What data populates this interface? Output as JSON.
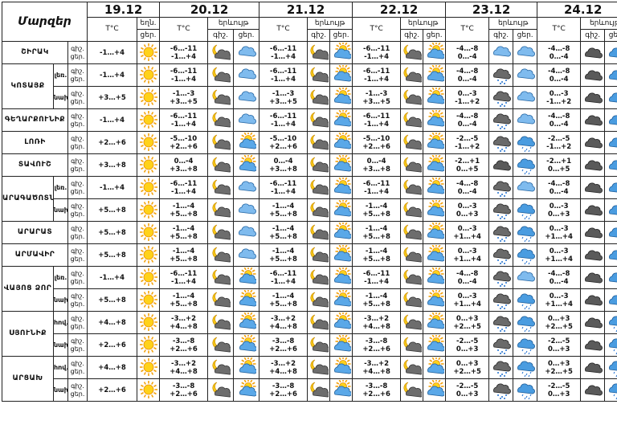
{
  "header": {
    "corner": "Մարզեր",
    "dates": [
      "19.12",
      "20.12",
      "21.12",
      "22.12",
      "23.12",
      "24.12"
    ],
    "temp_label": "T°C",
    "wx_label_19": "եղն.",
    "wx_sub_19": "ցեր.",
    "wx_label": "երևույթ",
    "night_label": "գիշ.",
    "day_label": "ցեր."
  },
  "daynight": [
    "գիշ.",
    "ցեր."
  ],
  "icon_legend": {
    "sun": "sun-icon",
    "cloud-sun": "cloud-sun-icon",
    "moon-cloud": "moon-cloud-icon",
    "cloud": "cloud-icon",
    "cloud-rain": "cloud-rain-icon",
    "cloud-snow": "cloud-snow-icon",
    "dark-cloud": "dark-cloud-icon",
    "dark-cloud-snow": "dark-cloud-snow-icon"
  },
  "rows": [
    {
      "region": "ՇԻՐԱԿ",
      "sub": "",
      "t": [
        "-1…+4",
        "-6…-11 / -1…+4",
        "-6…-11 / -1…+4",
        "-6…-11 / -1…+4",
        "-4…-8 / 0…-4",
        "-4…-8 / 0…-4"
      ],
      "i": [
        "sun",
        "moon-cloud",
        "cloud-snow",
        "moon-cloud",
        "cloud-sun",
        "moon-cloud",
        "cloud-sun",
        "cloud-snow",
        "cloud-snow",
        "dark-cloud",
        "cloud"
      ]
    },
    {
      "region": "ԿՈՏԱՅՔ",
      "sub": "լեռ.",
      "t": [
        "-1…+4",
        "-6…-11 / -1…+4",
        "-6…-11 / -1…+4",
        "-6…-11 / -1…+4",
        "-4…-8 / 0…-4",
        "-4…-8 / 0…-4"
      ],
      "i": [
        "sun",
        "moon-cloud",
        "cloud-snow",
        "moon-cloud",
        "cloud-sun",
        "moon-cloud",
        "cloud-sun",
        "dark-cloud-snow",
        "cloud-snow",
        "dark-cloud",
        "cloud"
      ]
    },
    {
      "region": "",
      "sub": "նախ.",
      "t": [
        "+3…+5",
        "-1…-3 / +3…+5",
        "-1…-3 / +3…+5",
        "-1…-3 / +3…+5",
        "0…-3 / -1…+2",
        "0…-3 / -1…+2"
      ],
      "i": [
        "sun",
        "moon-cloud",
        "cloud-snow",
        "moon-cloud",
        "cloud-sun",
        "moon-cloud",
        "cloud-sun",
        "dark-cloud-snow",
        "cloud-snow",
        "dark-cloud",
        "cloud"
      ]
    },
    {
      "region": "ԳԵՂԱՐՔՈՒՆԻՔ",
      "sub": "",
      "t": [
        "-1…+4",
        "-6…-11 / -1…+4",
        "-6…-11 / -1…+4",
        "-6…-11 / -1…+4",
        "-4…-8 / 0…-4",
        "-4…-8 / 0…-4"
      ],
      "i": [
        "sun",
        "moon-cloud",
        "cloud-snow",
        "moon-cloud",
        "cloud-sun",
        "moon-cloud",
        "cloud-sun",
        "dark-cloud-snow",
        "cloud-snow",
        "dark-cloud",
        "cloud"
      ]
    },
    {
      "region": "ԼՈՌԻ",
      "sub": "",
      "t": [
        "+2…+6",
        "-5…-10 / +2…+6",
        "-5…-10 / +2…+6",
        "-5…-10 / +2…+6",
        "-2…-5 / -1…+2",
        "-2…-5 / -1…+2"
      ],
      "i": [
        "sun",
        "moon-cloud",
        "cloud-sun",
        "moon-cloud",
        "cloud-sun",
        "moon-cloud",
        "cloud-sun",
        "dark-cloud-snow",
        "cloud-rain",
        "dark-cloud",
        "cloud"
      ]
    },
    {
      "region": "ՏԱՎՈՒՇ",
      "sub": "",
      "t": [
        "+3…+8",
        "0…-4 / +3…+8",
        "0…-4 / +3…+8",
        "0…-4 / +3…+8",
        "-2…+1 / 0…+5",
        "-2…+1 / 0…+5"
      ],
      "i": [
        "sun",
        "moon-cloud",
        "cloud-sun",
        "moon-cloud",
        "cloud-sun",
        "moon-cloud",
        "cloud-sun",
        "dark-cloud",
        "cloud-rain",
        "dark-cloud",
        "cloud"
      ]
    },
    {
      "region": "ԱՐԱԳԱԾՈՏՆ",
      "sub": "լեռ.",
      "t": [
        "-1…+4",
        "-6…-11 / -1…+4",
        "-6…-11 / -1…+4",
        "-6…-11 / -1…+4",
        "-4…-8 / 0…-4",
        "-4…-8 / 0…-4"
      ],
      "i": [
        "sun",
        "moon-cloud",
        "cloud-snow",
        "moon-cloud",
        "cloud-sun",
        "moon-cloud",
        "cloud-sun",
        "dark-cloud-snow",
        "cloud-snow",
        "dark-cloud",
        "cloud"
      ]
    },
    {
      "region": "",
      "sub": "նախ.",
      "t": [
        "+5…+8",
        "-1…-4 / +5…+8",
        "-1…-4 / +5…+8",
        "-1…-4 / +5…+8",
        "0…-3 / 0…+3",
        "0…-3 / 0…+3"
      ],
      "i": [
        "sun",
        "moon-cloud",
        "cloud-snow",
        "moon-cloud",
        "cloud-sun",
        "moon-cloud",
        "cloud-sun",
        "dark-cloud-snow",
        "cloud-rain",
        "dark-cloud",
        "cloud"
      ]
    },
    {
      "region": "ԱՐԱՐԱՏ",
      "sub": "",
      "t": [
        "+5…+8",
        "-1…-4 / +5…+8",
        "-1…-4 / +5…+8",
        "-1…-4 / +5…+8",
        "0…-3 / +1…+4",
        "0…-3 / +1…+4"
      ],
      "i": [
        "sun",
        "moon-cloud",
        "cloud-snow",
        "moon-cloud",
        "cloud-sun",
        "moon-cloud",
        "cloud-sun",
        "dark-cloud-snow",
        "cloud-rain",
        "dark-cloud",
        "cloud"
      ]
    },
    {
      "region": "ԱՐՄԱՎԻՐ",
      "sub": "",
      "t": [
        "+5…+8",
        "-1…-4 / +5…+8",
        "-1…-4 / +5…+8",
        "-1…-4 / +5…+8",
        "0…-3 / +1…+4",
        "0…-3 / +1…+4"
      ],
      "i": [
        "sun",
        "moon-cloud",
        "cloud-snow",
        "moon-cloud",
        "cloud-sun",
        "moon-cloud",
        "cloud-sun",
        "dark-cloud-snow",
        "cloud-rain",
        "dark-cloud",
        "cloud"
      ]
    },
    {
      "region": "ՎԱՅՈՑ ՁՈՐ",
      "sub": "լեռ.",
      "t": [
        "-1…+4",
        "-6…-11 / -1…+4",
        "-6…-11 / -1…+4",
        "-6…-11 / -1…+4",
        "-4…-8 / 0…-4",
        "-4…-8 / 0…-4"
      ],
      "i": [
        "sun",
        "moon-cloud",
        "cloud-sun",
        "moon-cloud",
        "cloud-sun",
        "moon-cloud",
        "cloud-sun",
        "dark-cloud-snow",
        "cloud-snow",
        "dark-cloud",
        "cloud"
      ]
    },
    {
      "region": "",
      "sub": "նախ",
      "t": [
        "+5…+8",
        "-1…-4 / +5…+8",
        "-1…-4 / +5…+8",
        "-1…-4 / +5…+8",
        "0…-3 / +1…+4",
        "0…-3 / +1…+4"
      ],
      "i": [
        "sun",
        "moon-cloud",
        "cloud-sun",
        "moon-cloud",
        "cloud-sun",
        "moon-cloud",
        "cloud-sun",
        "dark-cloud-snow",
        "cloud-rain",
        "dark-cloud",
        "cloud"
      ]
    },
    {
      "region": "ՍՅՈՒՆԻՔ",
      "sub": "հով.",
      "t": [
        "+4…+8",
        "-3…+2 / +4…+8",
        "-3…+2 / +4…+8",
        "-3…+2 / +4…+8",
        "0…+3 / +2…+5",
        "0…+3 / +2…+5"
      ],
      "i": [
        "sun",
        "moon-cloud",
        "cloud-sun",
        "moon-cloud",
        "cloud-sun",
        "moon-cloud",
        "cloud-sun",
        "dark-cloud-snow",
        "cloud-rain",
        "dark-cloud",
        "cloud-rain"
      ]
    },
    {
      "region": "",
      "sub": "նախ",
      "t": [
        "+2…+6",
        "-3…-8 / +2…+6",
        "-3…-8 / +2…+6",
        "-3…-8 / +2…+6",
        "-2…-5 / 0…+3",
        "-2…-5 / 0…+3"
      ],
      "i": [
        "sun",
        "moon-cloud",
        "cloud-sun",
        "moon-cloud",
        "cloud-sun",
        "moon-cloud",
        "cloud-sun",
        "dark-cloud-snow",
        "cloud-rain",
        "dark-cloud",
        "cloud-rain"
      ]
    },
    {
      "region": "ԱՐՑԱԽ",
      "sub": "հով.",
      "t": [
        "+4…+8",
        "-3…+2 / +4…+8",
        "-3…+2 / +4…+8",
        "-3…+2 / +4…+8",
        "0…+3 / +2…+5",
        "0…+3 / +2…+5"
      ],
      "i": [
        "sun",
        "moon-cloud",
        "cloud-sun",
        "moon-cloud",
        "cloud-sun",
        "moon-cloud",
        "cloud-sun",
        "dark-cloud-snow",
        "cloud-rain",
        "dark-cloud",
        "cloud-rain"
      ]
    },
    {
      "region": "",
      "sub": "նախ",
      "t": [
        "+2…+6",
        "-3…-8 / +2…+6",
        "-3…-8 / +2…+6",
        "-3…-8 / +2…+6",
        "-2…-5 / 0…+3",
        "-2…-5 / 0…+3"
      ],
      "i": [
        "sun",
        "moon-cloud",
        "cloud-sun",
        "moon-cloud",
        "cloud-sun",
        "moon-cloud",
        "cloud-sun",
        "dark-cloud-snow",
        "cloud-rain",
        "dark-cloud",
        "cloud-rain"
      ]
    }
  ]
}
